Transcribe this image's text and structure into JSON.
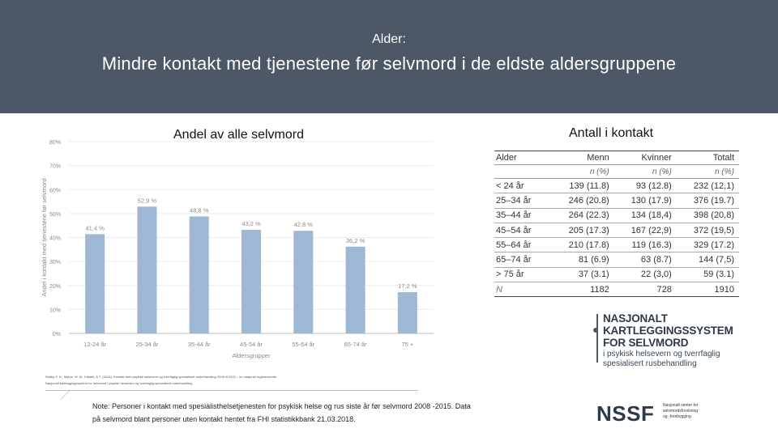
{
  "header": {
    "kicker": "Alder:",
    "title": "Mindre kontakt med tjenestene før selvmord i de eldste aldersgruppene"
  },
  "left_title": "Andel av alle selvmord",
  "right_title": "Antall i kontakt",
  "chart_data": {
    "type": "bar",
    "categories": [
      "12-24 år",
      "25-34 år",
      "35-44 år",
      "45-54 år",
      "55-64 år",
      "65-74 år",
      "75 +"
    ],
    "values": [
      41.4,
      52.9,
      48.8,
      43.2,
      42.8,
      36.2,
      17.2
    ],
    "value_labels": [
      "41,4 %",
      "52,9 %",
      "48,8 %",
      "43,2 %",
      "42,8 %",
      "36,2 %",
      "17,2 %"
    ],
    "y_ticks": [
      "0%",
      "10%",
      "20%",
      "30%",
      "40%",
      "50%",
      "60%",
      "70%",
      "80%"
    ],
    "ylim": [
      0,
      80
    ],
    "xlabel": "Aldersgrupper",
    "ylabel": "Andel i kontakt med tjenestene før selvmord",
    "bar_color": "#9eb7d4",
    "grid": true
  },
  "table": {
    "headers": [
      "Alder",
      "Menn",
      "Kvinner",
      "Totalt"
    ],
    "units": [
      "",
      "n (%)",
      "n (%)",
      "n (%)"
    ],
    "rows": [
      [
        "< 24 år",
        "139 (11.8)",
        "93 (12.8)",
        "232 (12,1)"
      ],
      [
        "25–34 år",
        "246 (20.8)",
        "130 (17.9)",
        "376 (19.7)"
      ],
      [
        "35–44 år",
        "264 (22.3)",
        "134 (18,4)",
        "398 (20,8)"
      ],
      [
        "45–54 år",
        "205 (17.3)",
        "167 (22,9)",
        "372 (19,5)"
      ],
      [
        "55–64 år",
        "210 (17.8)",
        "119 (16.3)",
        "329 (17.2)"
      ],
      [
        "65–74 år",
        "81 (6.9)",
        "63 (8.7)",
        "144 (7,5)"
      ],
      [
        "> 75 år",
        "37 (3.1)",
        "22 (3,0)",
        "59 (3.1)"
      ]
    ],
    "total": [
      "N",
      "1182",
      "728",
      "1910"
    ]
  },
  "source": {
    "line1": "Walby, F. A., Myhre, M. Ø., Kildahl, A.T. (2018). Kontakt med psykisk helsevern og tverrfaglig spesialisert rusbehandling 2008 til 2015 – en nasjonal registerstudie.",
    "line2": "Nasjonalt kartleggingssystem for selvmord i psykisk helsevern og tverrfaglig spesialisert rusbehandling"
  },
  "note": "Note: Personer i kontakt med spesialisthelsetjenesten for psykisk helse og rus siste år før selvmord 2008 -2015. Data på selvmord blant personer uten kontakt hentet fra FHI statistikkbank 21.03.2018.",
  "logo_nk": {
    "line1": "NASJONALT",
    "line2": "KARTLEGGINGSSYSTEM",
    "line3": "FOR SELVMORD",
    "line4": "i psykisk helsevern og tverrfaglig",
    "line5": "spesialisert rusbehandling"
  },
  "logo_nssf": {
    "name": "NSSF",
    "line1": "Nasjonalt senter for",
    "line2": "selvmordsforskning",
    "line3": "og -forebygging"
  }
}
